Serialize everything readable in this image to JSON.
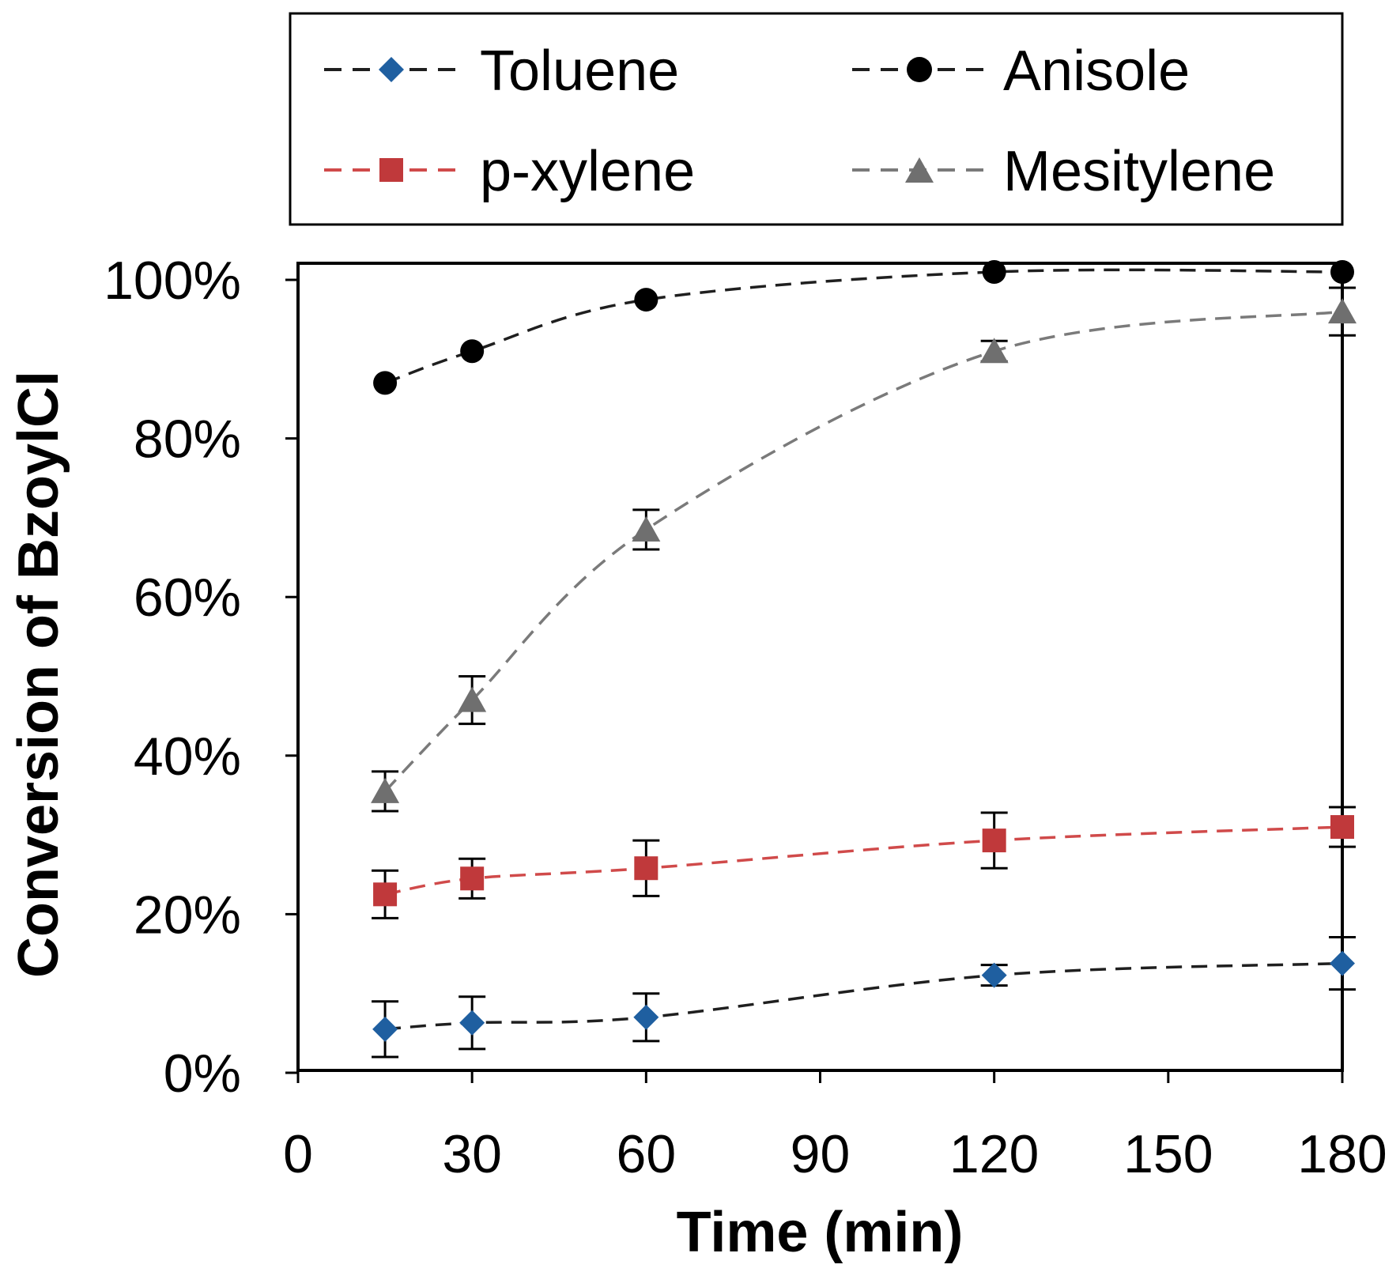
{
  "chart_data": {
    "type": "line",
    "title": "",
    "xlabel": "Time (min)",
    "ylabel": "Conversion of BzoylCl",
    "xlim": [
      0,
      180
    ],
    "ylim": [
      0,
      100
    ],
    "xticks": [
      0,
      30,
      60,
      90,
      120,
      150,
      180
    ],
    "yticks": [
      0,
      20,
      40,
      60,
      80,
      100
    ],
    "xtick_labels": [
      "0",
      "30",
      "60",
      "90",
      "120",
      "150",
      "180"
    ],
    "ytick_labels": [
      "0%",
      "20%",
      "40%",
      "60%",
      "80%",
      "100%"
    ],
    "grid": false,
    "legend_position": "top",
    "series": [
      {
        "name": "Toluene",
        "marker": "diamond",
        "marker_color": "#1f5fa0",
        "line_color": "#1f1f1f",
        "x": [
          15,
          30,
          60,
          120,
          180
        ],
        "y": [
          5.5,
          6.3,
          7,
          12.3,
          13.8
        ],
        "err": [
          3.5,
          3.3,
          3.0,
          1.3,
          3.3
        ]
      },
      {
        "name": "Anisole",
        "marker": "circle",
        "marker_color": "#000000",
        "line_color": "#1f1f1f",
        "x": [
          15,
          30,
          60,
          120,
          180
        ],
        "y": [
          87,
          91,
          97.5,
          101,
          101
        ],
        "err": [
          0,
          0,
          0,
          0,
          0
        ]
      },
      {
        "name": "p-xylene",
        "marker": "square",
        "marker_color": "#c0393b",
        "line_color": "#d04a4a",
        "x": [
          15,
          30,
          60,
          120,
          180
        ],
        "y": [
          22.5,
          24.5,
          25.8,
          29.3,
          31
        ],
        "err": [
          3.0,
          2.5,
          3.5,
          3.5,
          2.5
        ]
      },
      {
        "name": "Mesitylene",
        "marker": "triangle",
        "marker_color": "#6f6f6f",
        "line_color": "#7a7a7a",
        "x": [
          15,
          30,
          60,
          120,
          180
        ],
        "y": [
          35.5,
          47,
          68.5,
          91,
          96
        ],
        "err": [
          2.5,
          3.0,
          2.5,
          1.3,
          3.0
        ]
      }
    ]
  }
}
